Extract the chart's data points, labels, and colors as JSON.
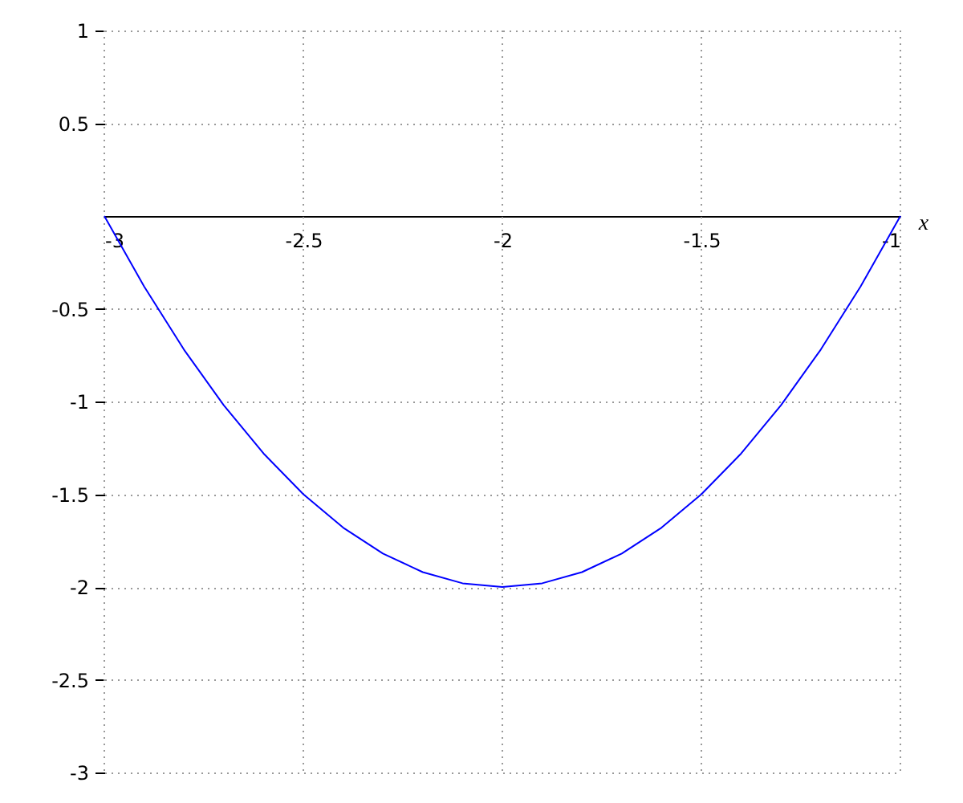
{
  "chart_data": {
    "type": "line",
    "xlabel": "x",
    "x": [
      -3,
      -2.9,
      -2.8,
      -2.7,
      -2.6,
      -2.5,
      -2.4,
      -2.3,
      -2.2,
      -2.1,
      -2,
      -1.9,
      -1.8,
      -1.7,
      -1.6,
      -1.5,
      -1.4,
      -1.3,
      -1.2,
      -1.1,
      -1
    ],
    "series": [
      {
        "color": "#0000ff",
        "values": [
          0,
          -0.38,
          -0.72,
          -1.02,
          -1.28,
          -1.5,
          -1.68,
          -1.82,
          -1.92,
          -1.98,
          -2,
          -1.98,
          -1.92,
          -1.82,
          -1.68,
          -1.5,
          -1.28,
          -1.02,
          -0.72,
          -0.38,
          0
        ]
      }
    ],
    "xlim": [
      -3,
      -1
    ],
    "xticks": [
      -3,
      -2.5,
      -2,
      -1.5,
      -1
    ],
    "ylim": [
      -3,
      1
    ],
    "yticks": [
      -3,
      -2.5,
      -2,
      -1.5,
      -1,
      -0.5,
      0.5,
      1
    ],
    "grid": true,
    "marker": "none",
    "line_style": "solid"
  }
}
